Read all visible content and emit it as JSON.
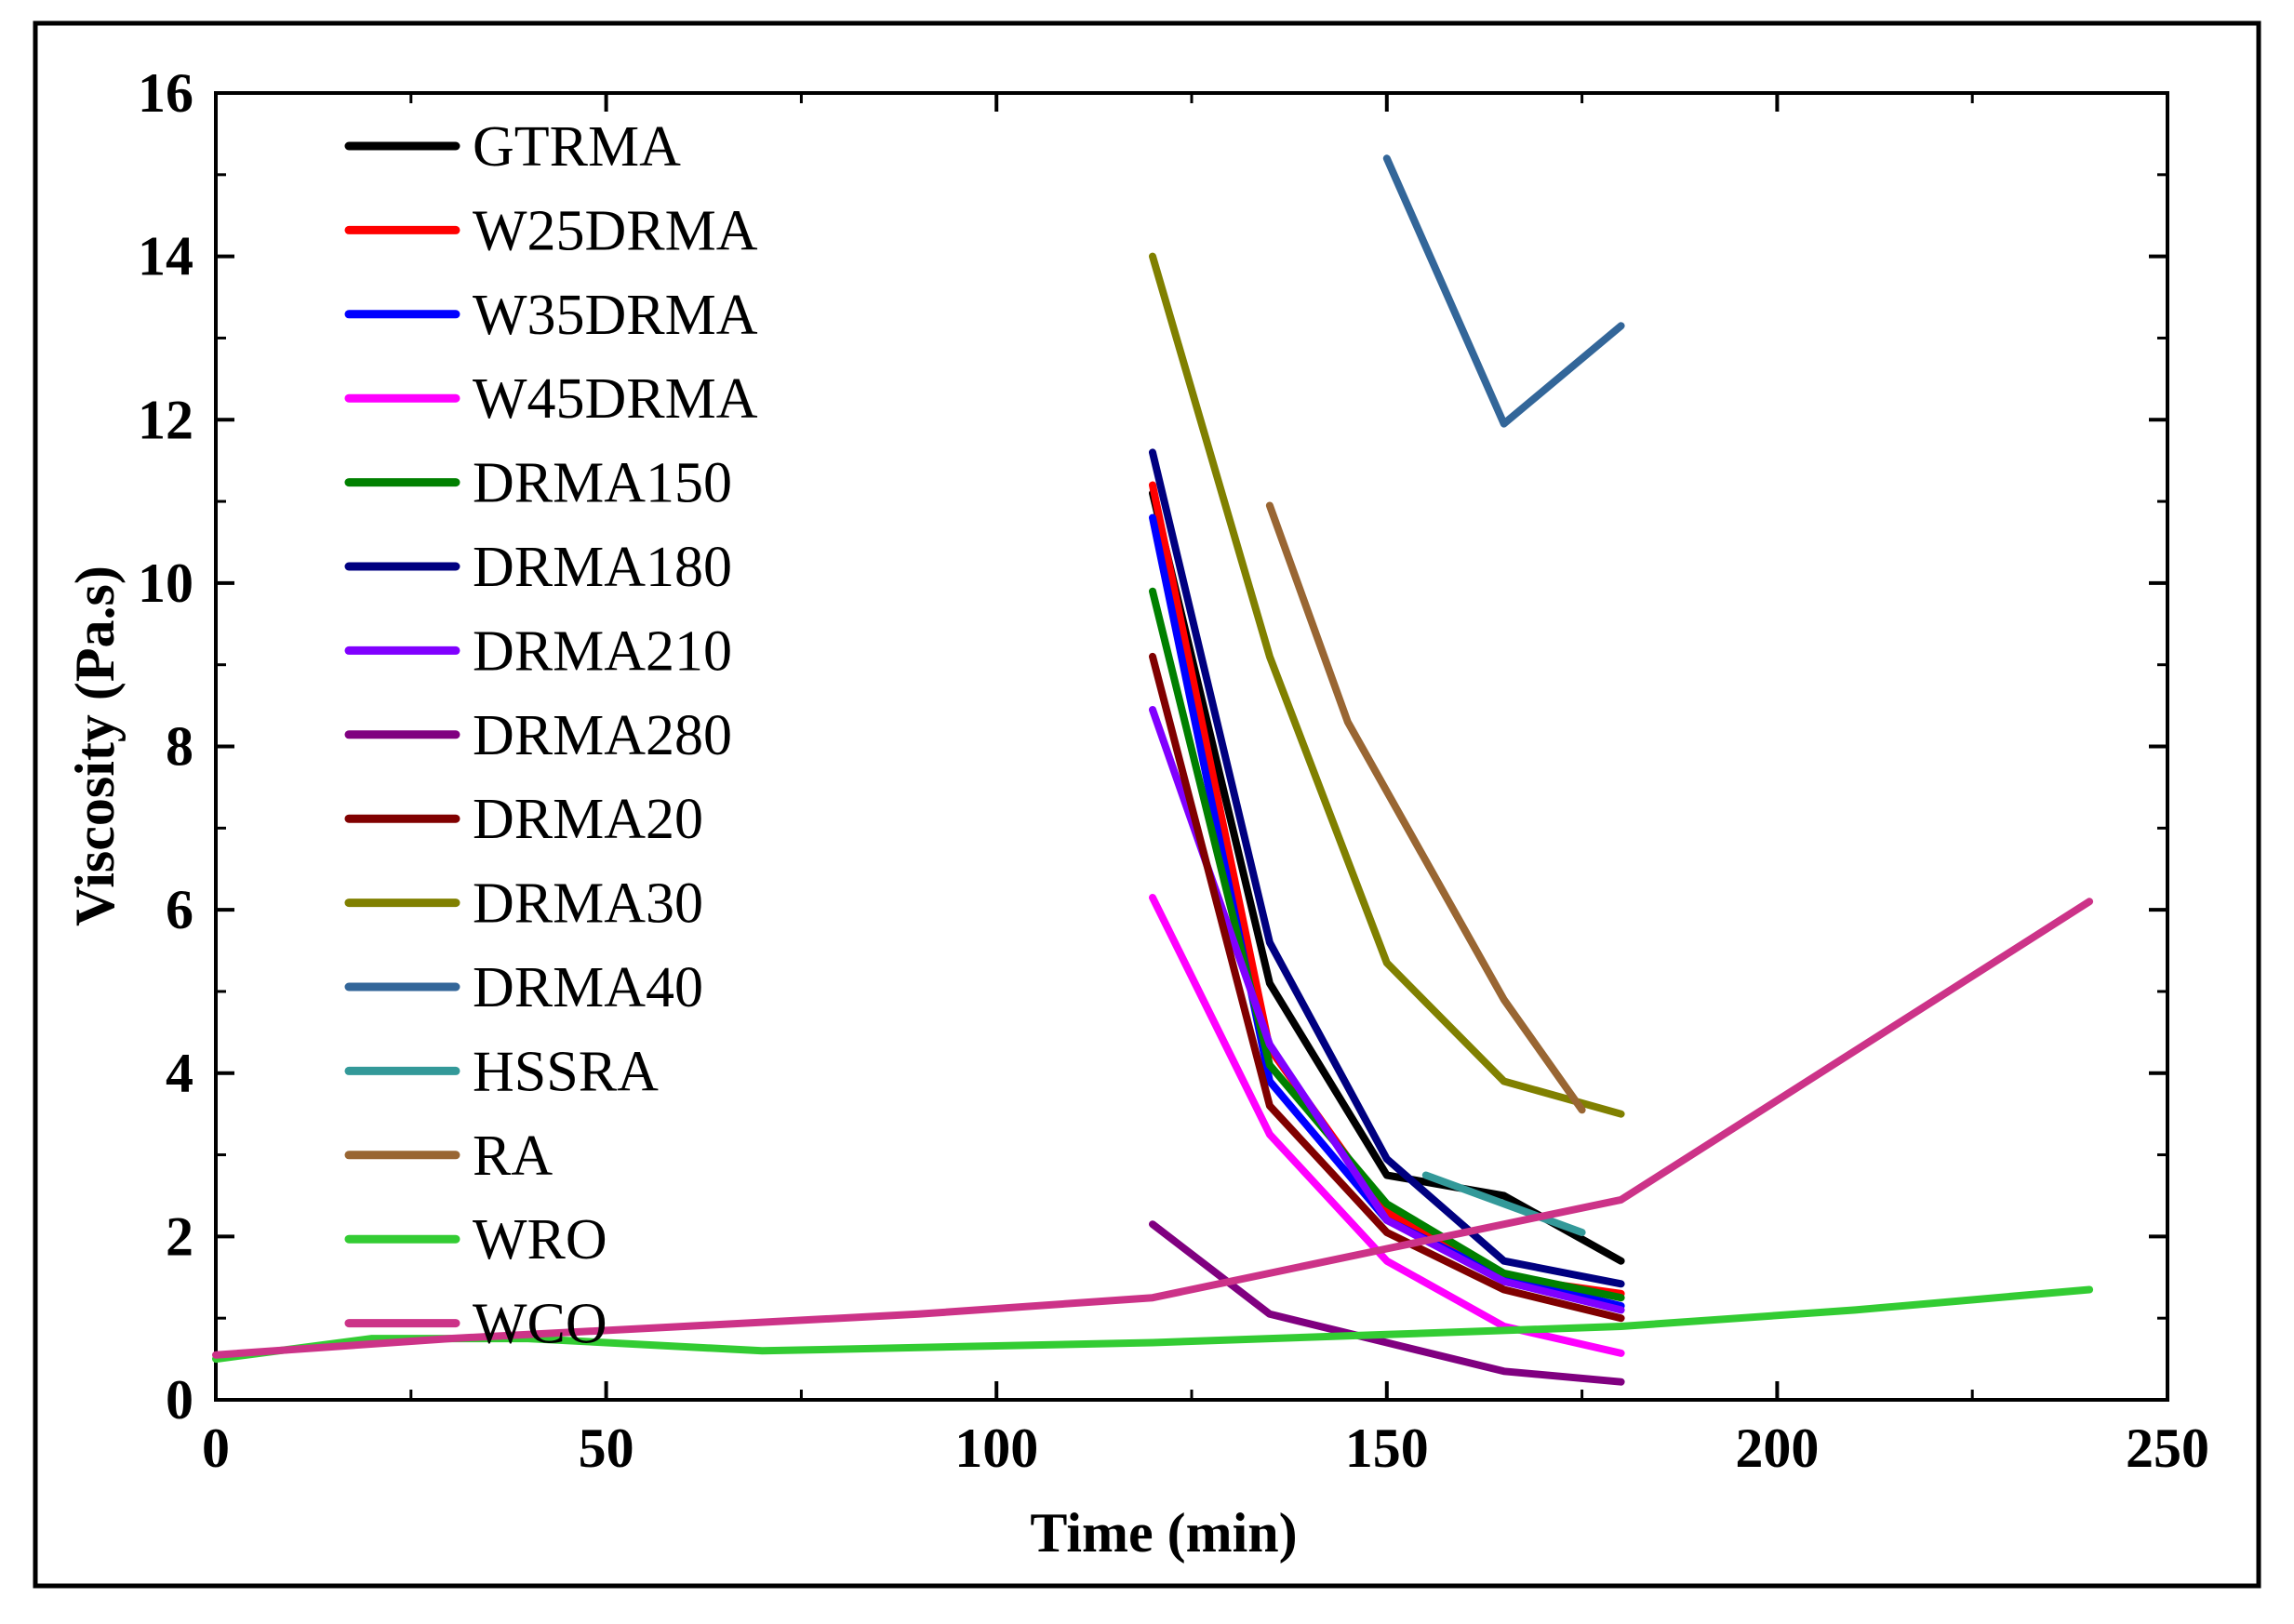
{
  "chart_data": {
    "type": "line",
    "title": "",
    "xlabel": "Time (min)",
    "ylabel": "Viscosity (Pa.s)",
    "xlim": [
      0,
      250
    ],
    "ylim": [
      0,
      16
    ],
    "xticks": [
      0,
      50,
      100,
      150,
      200,
      250
    ],
    "yticks": [
      0,
      2,
      4,
      6,
      8,
      10,
      12,
      14,
      16
    ],
    "grid": false,
    "legend_position": "top-left",
    "series": [
      {
        "name": "GTRMA",
        "color": "#000000",
        "x": [
          120,
          135,
          150,
          165,
          180
        ],
        "y": [
          11.1,
          5.1,
          2.75,
          2.5,
          1.7
        ]
      },
      {
        "name": "W25DRMA",
        "color": "#ff0000",
        "x": [
          120,
          135,
          150,
          165,
          180
        ],
        "y": [
          11.2,
          4.3,
          2.3,
          1.5,
          1.3
        ]
      },
      {
        "name": "W35DRMA",
        "color": "#0000ff",
        "x": [
          120,
          135,
          150,
          165,
          180
        ],
        "y": [
          10.8,
          3.9,
          2.2,
          1.5,
          1.15
        ]
      },
      {
        "name": "W45DRMA",
        "color": "#ff00ff",
        "x": [
          120,
          135,
          150,
          165,
          180
        ],
        "y": [
          6.15,
          3.25,
          1.7,
          0.9,
          0.57
        ]
      },
      {
        "name": "DRMA150",
        "color": "#008000",
        "x": [
          120,
          135,
          150,
          165,
          180
        ],
        "y": [
          9.9,
          4.1,
          2.4,
          1.55,
          1.25
        ]
      },
      {
        "name": "DRMA180",
        "color": "#000080",
        "x": [
          120,
          135,
          150,
          165,
          180
        ],
        "y": [
          11.6,
          5.6,
          2.95,
          1.7,
          1.42
        ]
      },
      {
        "name": "DRMA210",
        "color": "#8000ff",
        "x": [
          120,
          135,
          150,
          165,
          180
        ],
        "y": [
          8.45,
          4.35,
          2.2,
          1.45,
          1.1
        ]
      },
      {
        "name": "DRMA280",
        "color": "#800080",
        "x": [
          120,
          135,
          150,
          165,
          180
        ],
        "y": [
          2.15,
          1.05,
          0.7,
          0.35,
          0.22
        ]
      },
      {
        "name": "DRMA20",
        "color": "#800000",
        "x": [
          120,
          135,
          150,
          165,
          180
        ],
        "y": [
          9.1,
          3.6,
          2.05,
          1.35,
          1.0
        ]
      },
      {
        "name": "DRMA30",
        "color": "#808000",
        "x": [
          120,
          135,
          150,
          165,
          180
        ],
        "y": [
          14.0,
          9.1,
          5.35,
          3.9,
          3.5
        ]
      },
      {
        "name": "DRMA40",
        "color": "#336699",
        "x": [
          150,
          165,
          180
        ],
        "y": [
          15.2,
          11.95,
          13.15
        ]
      },
      {
        "name": "HSSRA",
        "color": "#339999",
        "x": [
          155,
          175
        ],
        "y": [
          2.75,
          2.05
        ]
      },
      {
        "name": "RA",
        "color": "#996633",
        "x": [
          135,
          145,
          165,
          175
        ],
        "y": [
          10.95,
          8.3,
          4.9,
          3.55
        ]
      },
      {
        "name": "WRO",
        "color": "#33cc33",
        "x": [
          0,
          20,
          40,
          70,
          120,
          150,
          180,
          210,
          240
        ],
        "y": [
          0.5,
          0.75,
          0.75,
          0.6,
          0.7,
          0.8,
          0.9,
          1.1,
          1.35
        ]
      },
      {
        "name": "WCO",
        "color": "#cc3388",
        "x": [
          0,
          30,
          60,
          90,
          120,
          150,
          180,
          240
        ],
        "y": [
          0.55,
          0.75,
          0.9,
          1.05,
          1.25,
          1.85,
          2.45,
          6.1
        ]
      }
    ]
  }
}
